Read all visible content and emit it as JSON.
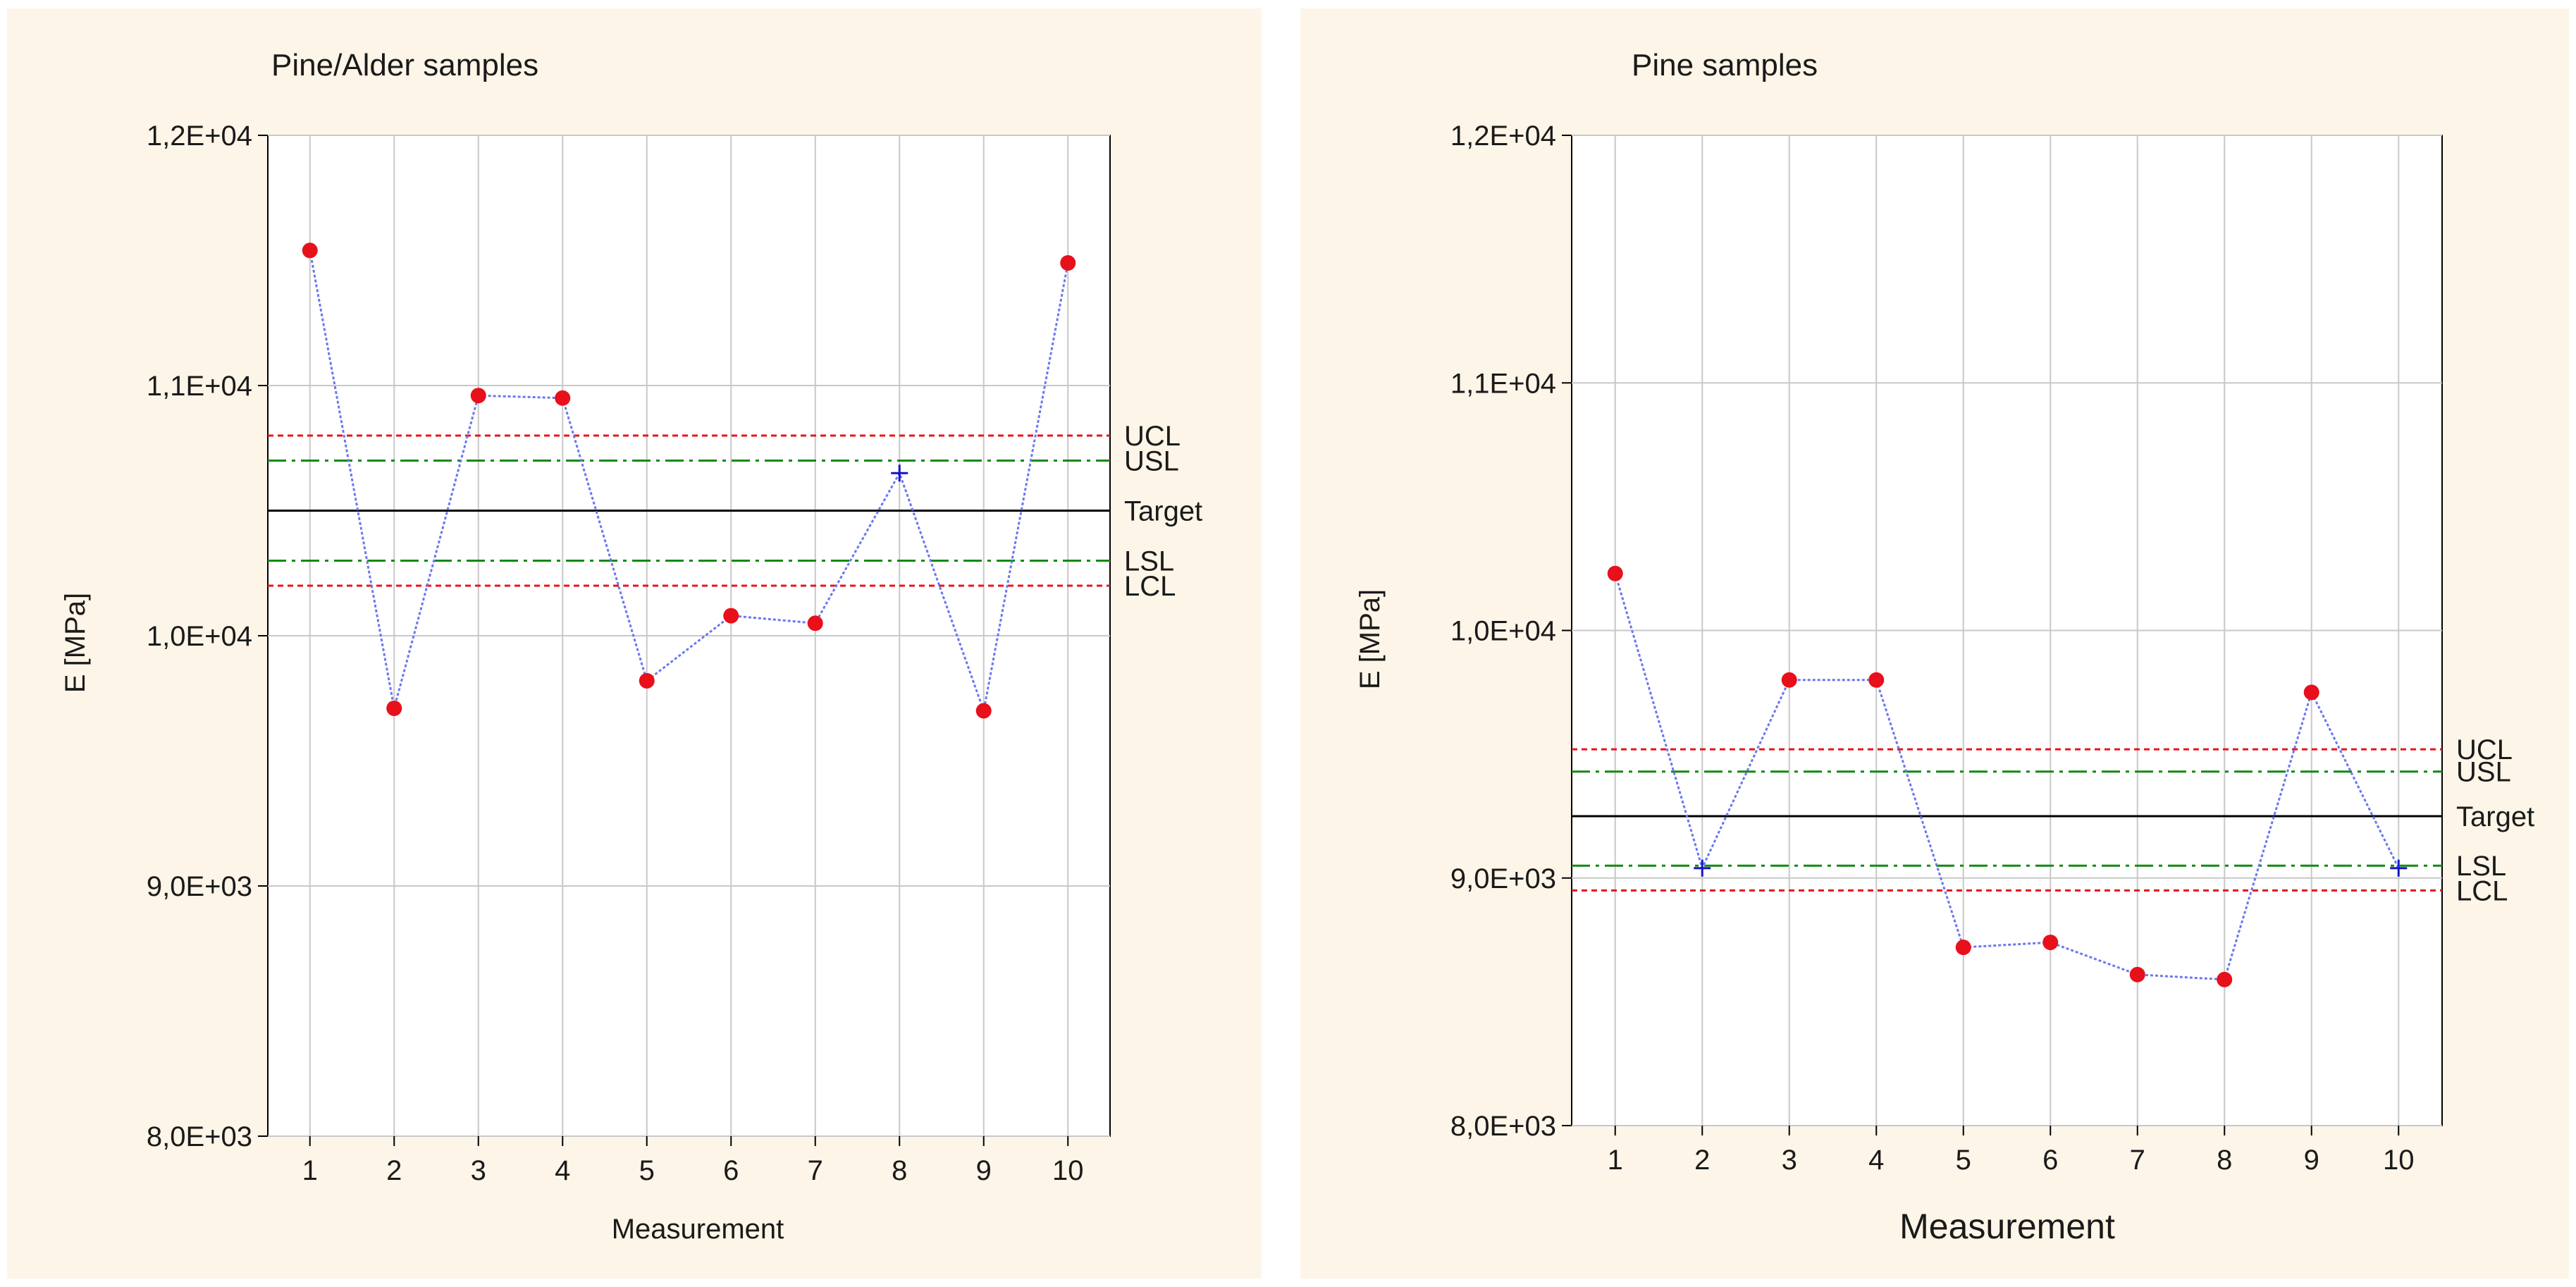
{
  "chart_data": [
    {
      "type": "line",
      "title": "Pine/Alder samples",
      "xlabel": "Measurement",
      "ylabel": "E [MPa]",
      "categories": [
        "1",
        "2",
        "3",
        "4",
        "5",
        "6",
        "7",
        "8",
        "9",
        "10"
      ],
      "values": [
        11540,
        9710,
        10960,
        10950,
        9820,
        10080,
        10050,
        10650,
        9700,
        11490
      ],
      "marker_kinds": [
        "dot",
        "dot",
        "dot",
        "dot",
        "dot",
        "dot",
        "dot",
        "plus",
        "dot",
        "dot"
      ],
      "ylim": [
        8000,
        12000
      ],
      "yticks": [
        8000,
        9000,
        10000,
        11000,
        12000
      ],
      "ytick_labels": [
        "8,0E+03",
        "9,0E+03",
        "1,0E+04",
        "1,1E+04",
        "1,2E+04"
      ],
      "reference_lines": [
        {
          "label": "UCL",
          "value": 10800,
          "style": "dotted",
          "color": "#e8141c"
        },
        {
          "label": "USL",
          "value": 10700,
          "style": "dashdot",
          "color": "#138a13"
        },
        {
          "label": "Target",
          "value": 10500,
          "style": "solid",
          "color": "#000000"
        },
        {
          "label": "LSL",
          "value": 10300,
          "style": "dashdot",
          "color": "#138a13"
        },
        {
          "label": "LCL",
          "value": 10200,
          "style": "dotted",
          "color": "#e8141c"
        }
      ],
      "grid": true,
      "colors": {
        "line": "#6b78f0",
        "marker": "#e8101a",
        "plus": "#1414c8",
        "grid": "#c8c8c8",
        "panel": "#fdf5e8"
      }
    },
    {
      "type": "line",
      "title": "Pine samples",
      "xlabel": "Measurement",
      "ylabel": "E [MPa]",
      "categories": [
        "1",
        "2",
        "3",
        "4",
        "5",
        "6",
        "7",
        "8",
        "9",
        "10"
      ],
      "values": [
        10230,
        9040,
        9800,
        9800,
        8720,
        8740,
        8610,
        8590,
        9750,
        9040
      ],
      "marker_kinds": [
        "dot",
        "plus",
        "dot",
        "dot",
        "dot",
        "dot",
        "dot",
        "dot",
        "dot",
        "plus"
      ],
      "ylim": [
        8000,
        12000
      ],
      "yticks": [
        8000,
        9000,
        10000,
        11000,
        12000
      ],
      "ytick_labels": [
        "8,0E+03",
        "9,0E+03",
        "1,0E+04",
        "1,1E+04",
        "1,2E+04"
      ],
      "reference_lines": [
        {
          "label": "UCL",
          "value": 9520,
          "style": "dotted",
          "color": "#e8141c"
        },
        {
          "label": "USL",
          "value": 9430,
          "style": "dashdot",
          "color": "#138a13"
        },
        {
          "label": "Target",
          "value": 9250,
          "style": "solid",
          "color": "#000000"
        },
        {
          "label": "LSL",
          "value": 9050,
          "style": "dashdot",
          "color": "#138a13"
        },
        {
          "label": "LCL",
          "value": 8950,
          "style": "dotted",
          "color": "#e8141c"
        }
      ],
      "grid": true,
      "colors": {
        "line": "#6b78f0",
        "marker": "#e8101a",
        "plus": "#1414c8",
        "grid": "#c8c8c8",
        "panel": "#fdf5e8"
      }
    }
  ]
}
